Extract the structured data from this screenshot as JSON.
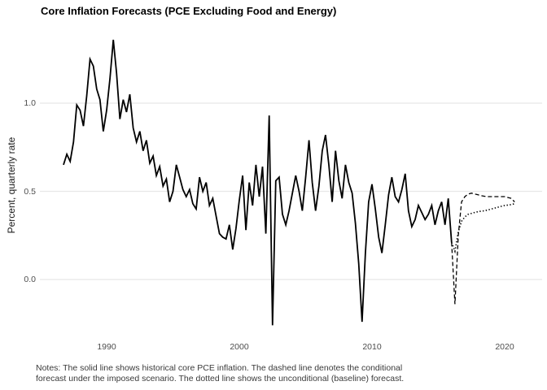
{
  "title": "Core Inflation Forecasts (PCE Excluding Food and Energy)",
  "notes": {
    "line1": "Notes: The solid line shows historical core PCE inflation. The dashed line denotes the conditional",
    "line2": "forecast under the imposed scenario. The dotted line shows the unconditional (baseline) forecast."
  },
  "colors": {
    "background": "#ffffff",
    "line": "#000000",
    "gridline": "#e7e7e7",
    "axis_text": "#4d4d4d",
    "notes_text": "#3a3a3a",
    "title_text": "#000000"
  },
  "chart_data": {
    "type": "line",
    "title": "Core Inflation Forecasts (PCE Excluding Food and Energy)",
    "xlabel": "",
    "ylabel": "Percent, quarterly rate",
    "grid": "horizontal-only",
    "legend_position": "none",
    "xlim": [
      1985,
      2022.5
    ],
    "ylim": [
      -0.33,
      1.42
    ],
    "x_ticks": [
      {
        "label": "1990",
        "year": 1990
      },
      {
        "label": "2000",
        "year": 2000
      },
      {
        "label": "2010",
        "year": 2010
      },
      {
        "label": "2020",
        "year": 2020
      }
    ],
    "y_ticks": [
      {
        "label": "0.0",
        "value": 0.0
      },
      {
        "label": "0.5",
        "value": 0.5
      },
      {
        "label": "1.0",
        "value": 1.0
      }
    ],
    "series": [
      {
        "name": "historical-core-pce-inflation",
        "style": "solid",
        "points": [
          [
            1986.75,
            0.65
          ],
          [
            1987.0,
            0.71
          ],
          [
            1987.25,
            0.67
          ],
          [
            1987.5,
            0.78
          ],
          [
            1987.75,
            0.99
          ],
          [
            1988.0,
            0.96
          ],
          [
            1988.25,
            0.87
          ],
          [
            1988.5,
            1.04
          ],
          [
            1988.75,
            1.25
          ],
          [
            1989.0,
            1.21
          ],
          [
            1989.25,
            1.08
          ],
          [
            1989.5,
            1.02
          ],
          [
            1989.75,
            0.84
          ],
          [
            1990.0,
            0.96
          ],
          [
            1990.25,
            1.14
          ],
          [
            1990.5,
            1.36
          ],
          [
            1990.75,
            1.17
          ],
          [
            1991.0,
            0.91
          ],
          [
            1991.25,
            1.02
          ],
          [
            1991.5,
            0.95
          ],
          [
            1991.75,
            1.05
          ],
          [
            1992.0,
            0.86
          ],
          [
            1992.25,
            0.78
          ],
          [
            1992.5,
            0.84
          ],
          [
            1992.75,
            0.73
          ],
          [
            1993.0,
            0.79
          ],
          [
            1993.25,
            0.66
          ],
          [
            1993.5,
            0.7
          ],
          [
            1993.75,
            0.59
          ],
          [
            1994.0,
            0.64
          ],
          [
            1994.25,
            0.53
          ],
          [
            1994.5,
            0.57
          ],
          [
            1994.75,
            0.44
          ],
          [
            1995.0,
            0.5
          ],
          [
            1995.25,
            0.65
          ],
          [
            1995.5,
            0.58
          ],
          [
            1995.75,
            0.51
          ],
          [
            1996.0,
            0.47
          ],
          [
            1996.25,
            0.51
          ],
          [
            1996.5,
            0.43
          ],
          [
            1996.75,
            0.4
          ],
          [
            1997.0,
            0.58
          ],
          [
            1997.25,
            0.5
          ],
          [
            1997.5,
            0.55
          ],
          [
            1997.75,
            0.42
          ],
          [
            1998.0,
            0.46
          ],
          [
            1998.25,
            0.36
          ],
          [
            1998.5,
            0.26
          ],
          [
            1998.75,
            0.24
          ],
          [
            1999.0,
            0.23
          ],
          [
            1999.25,
            0.31
          ],
          [
            1999.5,
            0.17
          ],
          [
            1999.75,
            0.29
          ],
          [
            2000.0,
            0.45
          ],
          [
            2000.25,
            0.59
          ],
          [
            2000.5,
            0.28
          ],
          [
            2000.75,
            0.55
          ],
          [
            2001.0,
            0.42
          ],
          [
            2001.25,
            0.65
          ],
          [
            2001.5,
            0.47
          ],
          [
            2001.75,
            0.64
          ],
          [
            2002.0,
            0.26
          ],
          [
            2002.25,
            0.93
          ],
          [
            2002.5,
            -0.26
          ],
          [
            2002.75,
            0.56
          ],
          [
            2003.0,
            0.58
          ],
          [
            2003.25,
            0.37
          ],
          [
            2003.5,
            0.31
          ],
          [
            2003.75,
            0.39
          ],
          [
            2004.0,
            0.49
          ],
          [
            2004.25,
            0.59
          ],
          [
            2004.5,
            0.5
          ],
          [
            2004.75,
            0.39
          ],
          [
            2005.0,
            0.58
          ],
          [
            2005.25,
            0.79
          ],
          [
            2005.5,
            0.55
          ],
          [
            2005.75,
            0.39
          ],
          [
            2006.0,
            0.53
          ],
          [
            2006.25,
            0.73
          ],
          [
            2006.5,
            0.82
          ],
          [
            2006.75,
            0.65
          ],
          [
            2007.0,
            0.44
          ],
          [
            2007.25,
            0.73
          ],
          [
            2007.5,
            0.56
          ],
          [
            2007.75,
            0.46
          ],
          [
            2008.0,
            0.65
          ],
          [
            2008.25,
            0.55
          ],
          [
            2008.5,
            0.49
          ],
          [
            2008.75,
            0.32
          ],
          [
            2009.0,
            0.09
          ],
          [
            2009.25,
            -0.24
          ],
          [
            2009.5,
            0.15
          ],
          [
            2009.75,
            0.44
          ],
          [
            2010.0,
            0.54
          ],
          [
            2010.25,
            0.4
          ],
          [
            2010.5,
            0.24
          ],
          [
            2010.75,
            0.15
          ],
          [
            2011.0,
            0.31
          ],
          [
            2011.25,
            0.48
          ],
          [
            2011.5,
            0.58
          ],
          [
            2011.75,
            0.47
          ],
          [
            2012.0,
            0.44
          ],
          [
            2012.25,
            0.51
          ],
          [
            2012.5,
            0.6
          ],
          [
            2012.75,
            0.39
          ],
          [
            2013.0,
            0.3
          ],
          [
            2013.25,
            0.34
          ],
          [
            2013.5,
            0.42
          ],
          [
            2013.75,
            0.38
          ],
          [
            2014.0,
            0.34
          ],
          [
            2014.25,
            0.37
          ],
          [
            2014.5,
            0.42
          ],
          [
            2014.75,
            0.31
          ],
          [
            2015.0,
            0.39
          ],
          [
            2015.25,
            0.44
          ],
          [
            2015.5,
            0.31
          ],
          [
            2015.75,
            0.46
          ],
          [
            2016.0,
            0.21
          ]
        ]
      },
      {
        "name": "conditional-forecast-imposed-scenario",
        "style": "dashed",
        "points": [
          [
            2016.0,
            0.21
          ],
          [
            2016.25,
            -0.14
          ],
          [
            2016.5,
            0.25
          ],
          [
            2016.75,
            0.44
          ],
          [
            2017.0,
            0.47
          ],
          [
            2017.25,
            0.485
          ],
          [
            2017.5,
            0.49
          ],
          [
            2017.75,
            0.485
          ],
          [
            2018.0,
            0.48
          ],
          [
            2018.25,
            0.475
          ],
          [
            2018.5,
            0.472
          ],
          [
            2018.75,
            0.47
          ],
          [
            2019.0,
            0.47
          ],
          [
            2019.25,
            0.47
          ],
          [
            2019.5,
            0.47
          ],
          [
            2019.75,
            0.47
          ],
          [
            2020.0,
            0.47
          ],
          [
            2020.25,
            0.465
          ],
          [
            2020.5,
            0.46
          ],
          [
            2020.75,
            0.44
          ]
        ]
      },
      {
        "name": "unconditional-baseline-forecast",
        "style": "dotted",
        "points": [
          [
            2016.0,
            0.21
          ],
          [
            2016.25,
            0.16
          ],
          [
            2016.5,
            0.27
          ],
          [
            2016.75,
            0.33
          ],
          [
            2017.0,
            0.355
          ],
          [
            2017.25,
            0.37
          ],
          [
            2017.5,
            0.375
          ],
          [
            2017.75,
            0.38
          ],
          [
            2018.0,
            0.385
          ],
          [
            2018.25,
            0.388
          ],
          [
            2018.5,
            0.39
          ],
          [
            2018.75,
            0.395
          ],
          [
            2019.0,
            0.4
          ],
          [
            2019.25,
            0.405
          ],
          [
            2019.5,
            0.41
          ],
          [
            2019.75,
            0.415
          ],
          [
            2020.0,
            0.42
          ],
          [
            2020.25,
            0.422
          ],
          [
            2020.5,
            0.425
          ],
          [
            2020.75,
            0.43
          ]
        ]
      }
    ]
  }
}
